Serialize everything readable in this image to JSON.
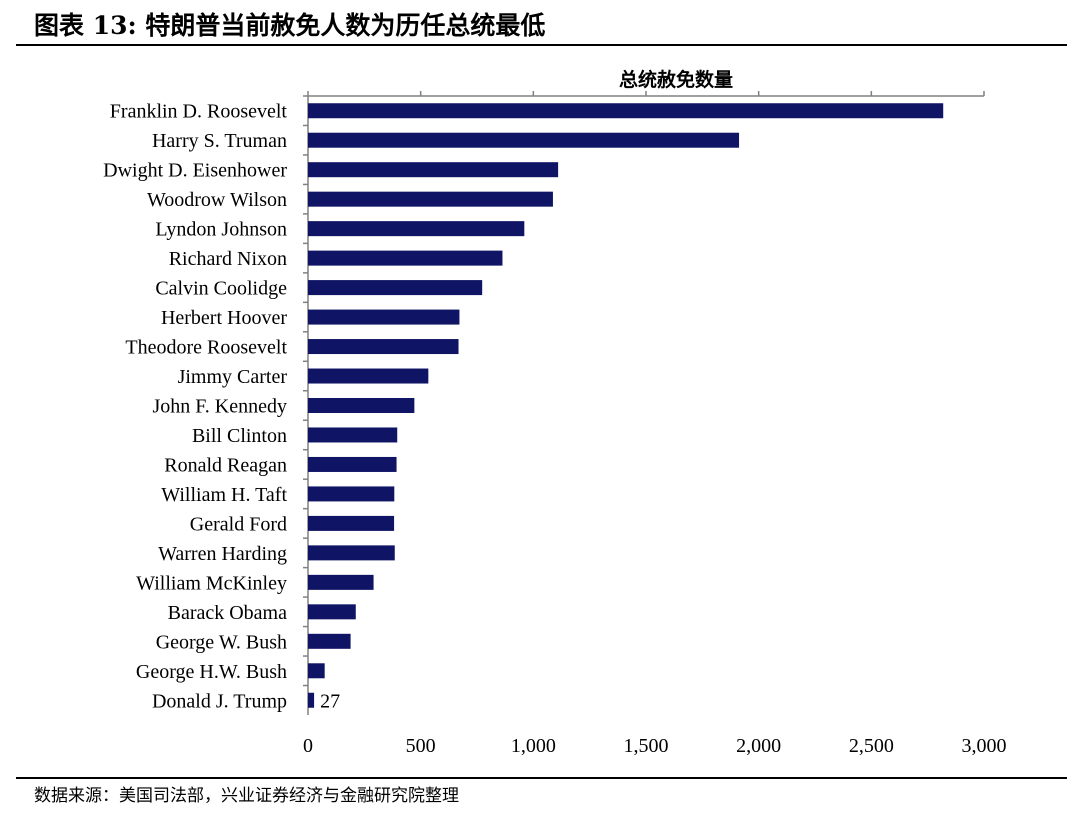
{
  "header": {
    "figure_title": "图表 13:  特朗普当前赦免人数为历任总统最低"
  },
  "footer": {
    "source": "数据来源：美国司法部，兴业证券经济与金融研究院整理"
  },
  "colors": {
    "bar": "#0f1464",
    "axis": "#808080",
    "text": "#000000"
  },
  "chart_data": {
    "type": "bar",
    "orientation": "horizontal",
    "title": "总统赦免数量",
    "xlabel": "",
    "ylabel": "",
    "xlim": [
      0,
      3000
    ],
    "x_ticks": [
      0,
      500,
      1000,
      1500,
      2000,
      2500,
      3000
    ],
    "x_tick_labels": [
      "0",
      "500",
      "1,000",
      "1,500",
      "2,000",
      "2,500",
      "3,000"
    ],
    "grid": false,
    "categories": [
      "Franklin D. Roosevelt",
      "Harry S. Truman",
      "Dwight D. Eisenhower",
      "Woodrow Wilson",
      "Lyndon Johnson",
      "Richard Nixon",
      "Calvin Coolidge",
      "Herbert Hoover",
      "Theodore Roosevelt",
      "Jimmy Carter",
      "John F. Kennedy",
      "Bill Clinton",
      "Ronald Reagan",
      "William H. Taft",
      "Gerald Ford",
      "Warren Harding",
      "William McKinley",
      "Barack Obama",
      "George W. Bush",
      "George H.W. Bush",
      "Donald J. Trump"
    ],
    "values": [
      2819,
      1913,
      1110,
      1087,
      960,
      863,
      773,
      672,
      668,
      534,
      472,
      396,
      393,
      383,
      382,
      385,
      291,
      212,
      189,
      74,
      27
    ],
    "data_labels": [
      {
        "category": "Donald J. Trump",
        "text": "27"
      }
    ]
  }
}
